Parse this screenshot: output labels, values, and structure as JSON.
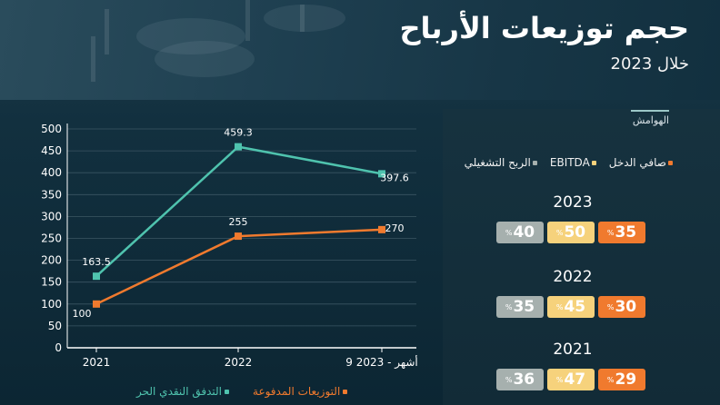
{
  "header": {
    "title": "حجم توزيعات الأرباح",
    "subtitle": "خلال 2023"
  },
  "colors": {
    "free_cash_flow": "#4fc3ae",
    "dividends_paid": "#f07a2e",
    "net_income": "#f07a2e",
    "ebitda": "#f6d27c",
    "operating_profit": "#a6b0ae",
    "axis": "#ffffff",
    "grid": "#3b5663"
  },
  "chart_data": {
    "type": "line",
    "categories": [
      "2021",
      "2022",
      "9 أشهر - 2023"
    ],
    "series": [
      {
        "name": "التدفق النقدي الحر",
        "values": [
          163.5,
          459.3,
          397.6
        ]
      },
      {
        "name": "التوزيعات المدفوعة",
        "values": [
          100,
          255,
          270
        ]
      }
    ],
    "data_labels": [
      [
        "163.5",
        "459.3",
        "397.6"
      ],
      [
        "100",
        "255",
        "270"
      ]
    ],
    "ylim": [
      0,
      500
    ],
    "yticks": [
      "0",
      "50",
      "100",
      "150",
      "200",
      "250",
      "300",
      "350",
      "400",
      "450",
      "500"
    ],
    "grid": true,
    "legend_position": "bottom"
  },
  "margins": {
    "title": "الهوامش",
    "legend": [
      "صافي الدخل",
      "EBITDA",
      "الربح التشغيلي"
    ],
    "years": [
      {
        "year": "2023",
        "net_income": "35",
        "ebitda": "50",
        "operating": "40"
      },
      {
        "year": "2022",
        "net_income": "30",
        "ebitda": "45",
        "operating": "35"
      },
      {
        "year": "2021",
        "net_income": "29",
        "ebitda": "47",
        "operating": "36"
      }
    ],
    "percent_sign": "%"
  }
}
